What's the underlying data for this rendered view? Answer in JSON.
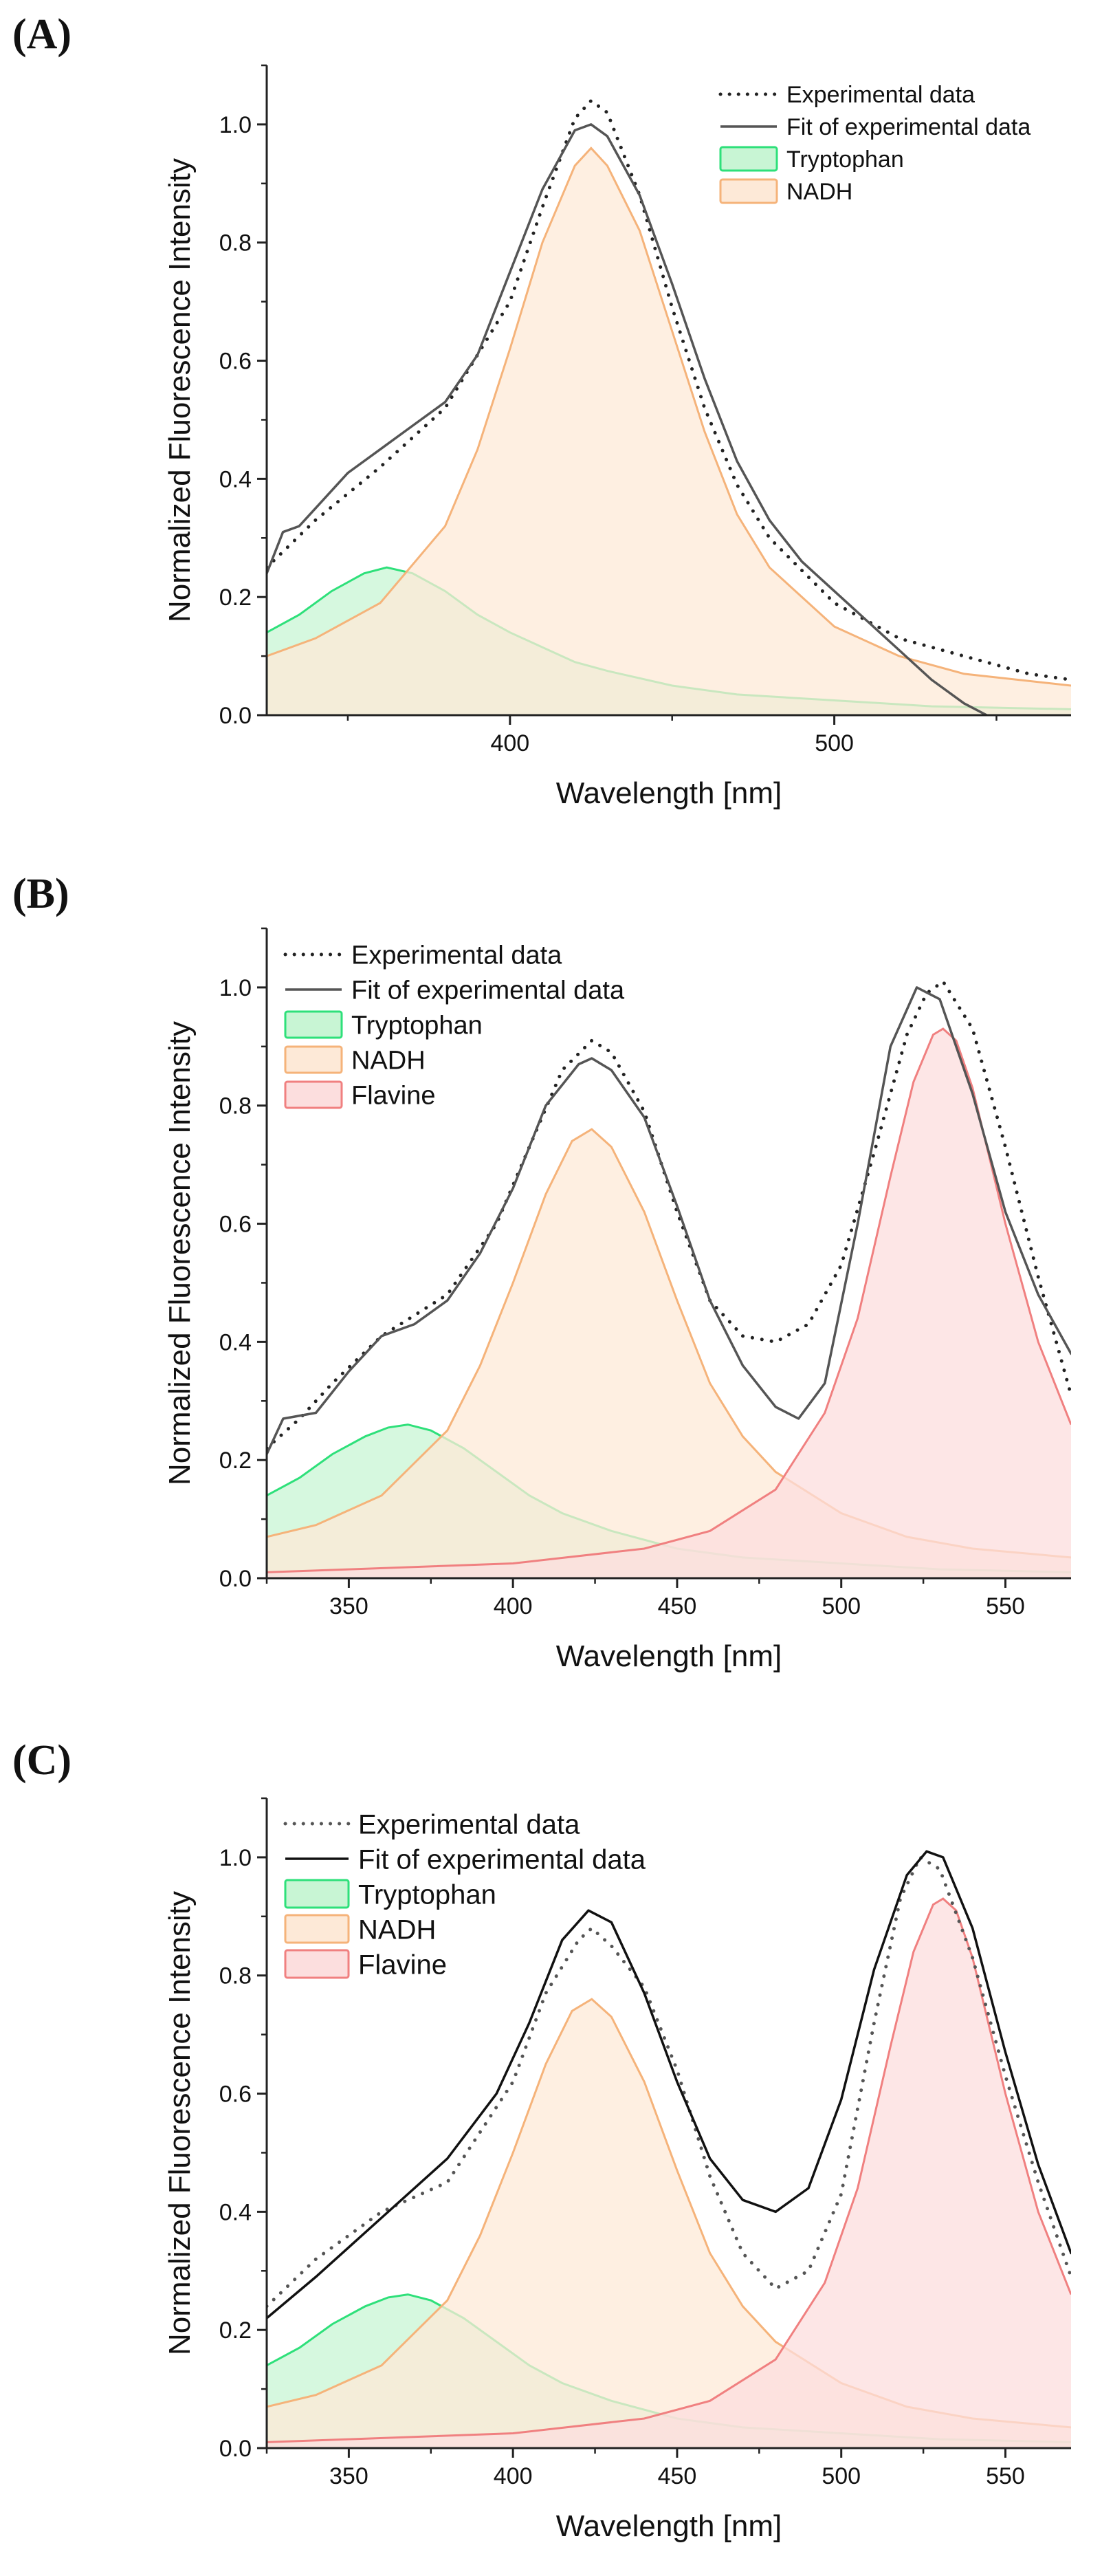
{
  "figure": {
    "colors": {
      "tryptophan": "#2ee07a",
      "nadh": "#f5b37a",
      "flavine": "#f08080",
      "tryptophan_fill": "#c8f5d4",
      "nadh_fill": "#fde9d7",
      "flavine_fill": "#fcdede",
      "data": "#222222"
    }
  },
  "chart_data": [
    {
      "type": "line",
      "panel_label": "(A)",
      "title": "",
      "xlabel": "Wavelength [nm]",
      "ylabel": "Normalized Fluorescence Intensity",
      "xlim": [
        325,
        573
      ],
      "ylim": [
        0,
        1.1
      ],
      "xticks": [
        400,
        500
      ],
      "xtick_labels": [
        "400",
        "500"
      ],
      "yticks": [
        0.0,
        0.2,
        0.4,
        0.6,
        0.8,
        1.0
      ],
      "ytick_labels": [
        "0.0",
        "0.2",
        "0.4",
        "0.6",
        "0.8",
        "1.0"
      ],
      "legend": {
        "position": "top-right",
        "entries": [
          {
            "label": "Experimental data",
            "kind": "dotted",
            "color": "#222222"
          },
          {
            "label": "Fit of experimental data",
            "kind": "solid",
            "color": "#555555"
          },
          {
            "label": "Tryptophan",
            "kind": "patch",
            "color": "#2ee07a",
            "fill": "#c8f5d4"
          },
          {
            "label": " NADH",
            "kind": "patch",
            "color": "#f5b37a",
            "fill": "#fde9d7"
          }
        ]
      },
      "series": [
        {
          "name": "Experimental data",
          "style": "dotted",
          "color": "#222222",
          "x": [
            325,
            340,
            360,
            380,
            400,
            410,
            420,
            425,
            430,
            440,
            450,
            460,
            470,
            480,
            500,
            520,
            540,
            560,
            573
          ],
          "y": [
            0.25,
            0.33,
            0.42,
            0.52,
            0.7,
            0.86,
            1.01,
            1.04,
            1.02,
            0.88,
            0.69,
            0.52,
            0.39,
            0.3,
            0.19,
            0.13,
            0.1,
            0.07,
            0.06
          ]
        },
        {
          "name": "Fit of experimental data",
          "style": "solid",
          "color": "#555555",
          "x": [
            325,
            330,
            335,
            340,
            350,
            360,
            370,
            380,
            390,
            400,
            410,
            420,
            425,
            430,
            440,
            450,
            460,
            470,
            480,
            490,
            500,
            510,
            520,
            530,
            540,
            547
          ],
          "y": [
            0.24,
            0.31,
            0.32,
            0.35,
            0.41,
            0.45,
            0.49,
            0.53,
            0.61,
            0.75,
            0.89,
            0.99,
            1.0,
            0.98,
            0.88,
            0.73,
            0.57,
            0.43,
            0.33,
            0.26,
            0.21,
            0.16,
            0.11,
            0.06,
            0.02,
            0.0
          ]
        },
        {
          "name": "Tryptophan",
          "style": "area",
          "color": "#2ee07a",
          "fill": "#c8f5d4",
          "x": [
            325,
            335,
            345,
            355,
            362,
            370,
            380,
            390,
            400,
            410,
            420,
            430,
            450,
            470,
            500,
            530,
            573
          ],
          "y": [
            0.14,
            0.17,
            0.21,
            0.24,
            0.25,
            0.24,
            0.21,
            0.17,
            0.14,
            0.115,
            0.09,
            0.075,
            0.05,
            0.035,
            0.025,
            0.015,
            0.01
          ]
        },
        {
          "name": " NADH",
          "style": "area",
          "color": "#f5b37a",
          "fill": "#fde9d7",
          "x": [
            325,
            340,
            360,
            380,
            390,
            400,
            410,
            420,
            425,
            430,
            440,
            450,
            460,
            470,
            480,
            500,
            520,
            540,
            573
          ],
          "y": [
            0.1,
            0.13,
            0.19,
            0.32,
            0.45,
            0.62,
            0.8,
            0.93,
            0.96,
            0.93,
            0.82,
            0.65,
            0.48,
            0.34,
            0.25,
            0.15,
            0.1,
            0.07,
            0.05
          ]
        }
      ]
    },
    {
      "type": "line",
      "panel_label": "(B)",
      "title": "",
      "xlabel": "Wavelength [nm]",
      "ylabel": "Normalized Fluorescence Intensity",
      "xlim": [
        325,
        570
      ],
      "ylim": [
        0,
        1.1
      ],
      "xticks": [
        350,
        400,
        450,
        500,
        550
      ],
      "xtick_labels": [
        "350",
        "400",
        "450",
        "500",
        "550"
      ],
      "yticks": [
        0.0,
        0.2,
        0.4,
        0.6,
        0.8,
        1.0
      ],
      "ytick_labels": [
        "0.0",
        "0.2",
        "0.4",
        "0.6",
        "0.8",
        "1.0"
      ],
      "legend": {
        "position": "top-left",
        "entries": [
          {
            "label": "Experimental data",
            "kind": "dotted",
            "color": "#222222"
          },
          {
            "label": "Fit of experimental data",
            "kind": "solid",
            "color": "#555555"
          },
          {
            "label": "Tryptophan",
            "kind": "patch",
            "color": "#2ee07a",
            "fill": "#c8f5d4"
          },
          {
            "label": " NADH",
            "kind": "patch",
            "color": "#f5b37a",
            "fill": "#fde9d7"
          },
          {
            "label": "Flavine",
            "kind": "patch",
            "color": "#f08080",
            "fill": "#fcdede"
          }
        ]
      },
      "series": [
        {
          "name": "Experimental data",
          "style": "dotted",
          "color": "#222222",
          "x": [
            325,
            335,
            345,
            360,
            380,
            395,
            405,
            415,
            424,
            430,
            440,
            450,
            460,
            470,
            480,
            490,
            500,
            510,
            520,
            526,
            531,
            540,
            550,
            560,
            570
          ],
          "y": [
            0.22,
            0.27,
            0.33,
            0.41,
            0.48,
            0.6,
            0.73,
            0.86,
            0.91,
            0.89,
            0.79,
            0.62,
            0.47,
            0.41,
            0.4,
            0.43,
            0.53,
            0.72,
            0.92,
            0.99,
            1.01,
            0.93,
            0.73,
            0.51,
            0.31
          ]
        },
        {
          "name": "Fit of experimental data",
          "style": "solid",
          "color": "#555555",
          "x": [
            325,
            330,
            340,
            350,
            360,
            370,
            380,
            390,
            400,
            410,
            420,
            424,
            430,
            440,
            450,
            460,
            470,
            480,
            487,
            495,
            505,
            515,
            523,
            530,
            540,
            550,
            560,
            570
          ],
          "y": [
            0.21,
            0.27,
            0.28,
            0.35,
            0.41,
            0.43,
            0.47,
            0.55,
            0.66,
            0.8,
            0.87,
            0.88,
            0.86,
            0.78,
            0.63,
            0.47,
            0.36,
            0.29,
            0.27,
            0.33,
            0.6,
            0.9,
            1.0,
            0.98,
            0.82,
            0.62,
            0.48,
            0.38
          ]
        },
        {
          "name": "Tryptophan",
          "style": "area",
          "color": "#2ee07a",
          "fill": "#c8f5d4",
          "x": [
            325,
            335,
            345,
            355,
            362,
            368,
            375,
            385,
            395,
            405,
            415,
            430,
            450,
            470,
            500,
            530,
            570
          ],
          "y": [
            0.14,
            0.17,
            0.21,
            0.24,
            0.255,
            0.26,
            0.25,
            0.22,
            0.18,
            0.14,
            0.11,
            0.08,
            0.05,
            0.035,
            0.025,
            0.015,
            0.01
          ]
        },
        {
          "name": " NADH",
          "style": "area",
          "color": "#f5b37a",
          "fill": "#fde9d7",
          "x": [
            325,
            340,
            360,
            380,
            390,
            400,
            410,
            418,
            424,
            430,
            440,
            450,
            460,
            470,
            480,
            500,
            520,
            540,
            570
          ],
          "y": [
            0.07,
            0.09,
            0.14,
            0.25,
            0.36,
            0.5,
            0.65,
            0.74,
            0.76,
            0.73,
            0.62,
            0.47,
            0.33,
            0.24,
            0.18,
            0.11,
            0.07,
            0.05,
            0.035
          ]
        },
        {
          "name": "Flavine",
          "style": "area",
          "color": "#f08080",
          "fill": "#fcdede",
          "x": [
            325,
            350,
            400,
            440,
            460,
            480,
            495,
            505,
            515,
            522,
            528,
            531,
            535,
            540,
            550,
            560,
            570
          ],
          "y": [
            0.01,
            0.015,
            0.025,
            0.05,
            0.08,
            0.15,
            0.28,
            0.44,
            0.68,
            0.84,
            0.92,
            0.93,
            0.91,
            0.83,
            0.6,
            0.4,
            0.26
          ]
        }
      ]
    },
    {
      "type": "line",
      "panel_label": "(C)",
      "title": "",
      "xlabel": "Wavelength [nm]",
      "ylabel": "Normalized Fluorescence Intensity",
      "xlim": [
        325,
        570
      ],
      "ylim": [
        0,
        1.1
      ],
      "xticks": [
        350,
        400,
        450,
        500,
        550
      ],
      "xtick_labels": [
        "350",
        "400",
        "450",
        "500",
        "550"
      ],
      "yticks": [
        0.0,
        0.2,
        0.4,
        0.6,
        0.8,
        1.0
      ],
      "ytick_labels": [
        "0.0",
        "0.2",
        "0.4",
        "0.6",
        "0.8",
        "1.0"
      ],
      "legend": {
        "position": "top-left",
        "entries": [
          {
            "label": "Experimental data",
            "kind": "dotted",
            "color": "#555555"
          },
          {
            "label": "Fit of experimental data",
            "kind": "solid",
            "color": "#111111"
          },
          {
            "label": "Tryptophan",
            "kind": "patch",
            "color": "#2ee07a",
            "fill": "#c8f5d4"
          },
          {
            "label": "NADH",
            "kind": "patch",
            "color": "#f5b37a",
            "fill": "#fde9d7"
          },
          {
            "label": "Flavine",
            "kind": "patch",
            "color": "#f08080",
            "fill": "#fcdede"
          }
        ]
      },
      "series": [
        {
          "name": "Experimental data",
          "style": "dotted",
          "color": "#555555",
          "x": [
            325,
            340,
            360,
            380,
            400,
            410,
            420,
            424,
            430,
            440,
            450,
            460,
            470,
            480,
            490,
            500,
            510,
            518,
            524,
            530,
            540,
            550,
            560,
            570
          ],
          "y": [
            0.24,
            0.32,
            0.4,
            0.45,
            0.62,
            0.77,
            0.86,
            0.88,
            0.85,
            0.78,
            0.64,
            0.46,
            0.33,
            0.27,
            0.3,
            0.43,
            0.72,
            0.93,
            1.0,
            0.98,
            0.83,
            0.63,
            0.45,
            0.29
          ]
        },
        {
          "name": "Fit of experimental data",
          "style": "solid",
          "color": "#111111",
          "x": [
            325,
            340,
            360,
            380,
            395,
            405,
            415,
            423,
            430,
            440,
            450,
            460,
            470,
            480,
            490,
            500,
            510,
            520,
            526,
            531,
            540,
            550,
            560,
            570
          ],
          "y": [
            0.22,
            0.29,
            0.39,
            0.49,
            0.6,
            0.72,
            0.86,
            0.91,
            0.89,
            0.77,
            0.62,
            0.49,
            0.42,
            0.4,
            0.44,
            0.59,
            0.81,
            0.97,
            1.01,
            1.0,
            0.88,
            0.67,
            0.48,
            0.33
          ]
        },
        {
          "name": "Tryptophan",
          "style": "area",
          "color": "#2ee07a",
          "fill": "#c8f5d4",
          "x": [
            325,
            335,
            345,
            355,
            362,
            368,
            375,
            385,
            395,
            405,
            415,
            430,
            450,
            470,
            500,
            530,
            570
          ],
          "y": [
            0.14,
            0.17,
            0.21,
            0.24,
            0.255,
            0.26,
            0.25,
            0.22,
            0.18,
            0.14,
            0.11,
            0.08,
            0.05,
            0.035,
            0.025,
            0.015,
            0.01
          ]
        },
        {
          "name": "NADH",
          "style": "area",
          "color": "#f5b37a",
          "fill": "#fde9d7",
          "x": [
            325,
            340,
            360,
            380,
            390,
            400,
            410,
            418,
            424,
            430,
            440,
            450,
            460,
            470,
            480,
            500,
            520,
            540,
            570
          ],
          "y": [
            0.07,
            0.09,
            0.14,
            0.25,
            0.36,
            0.5,
            0.65,
            0.74,
            0.76,
            0.73,
            0.62,
            0.47,
            0.33,
            0.24,
            0.18,
            0.11,
            0.07,
            0.05,
            0.035
          ]
        },
        {
          "name": "Flavine",
          "style": "area",
          "color": "#f08080",
          "fill": "#fcdede",
          "x": [
            325,
            350,
            400,
            440,
            460,
            480,
            495,
            505,
            515,
            522,
            528,
            531,
            535,
            540,
            550,
            560,
            570
          ],
          "y": [
            0.01,
            0.015,
            0.025,
            0.05,
            0.08,
            0.15,
            0.28,
            0.44,
            0.68,
            0.84,
            0.92,
            0.93,
            0.91,
            0.83,
            0.6,
            0.4,
            0.26
          ]
        }
      ]
    }
  ]
}
